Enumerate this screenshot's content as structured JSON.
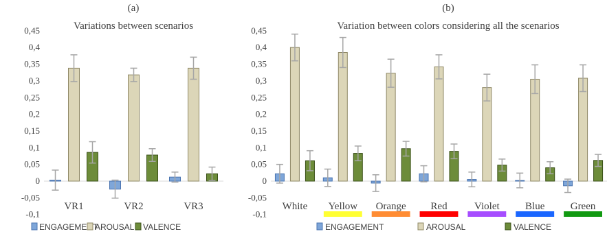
{
  "colors": {
    "engagement": "#7ea6d9",
    "engagement_stroke": "#4a74b0",
    "arousal": "#dcd6b8",
    "arousal_stroke": "#8f8866",
    "valence": "#6d8c3a",
    "valence_stroke": "#3a5018",
    "error": "#a6a6a6",
    "axis": "#d9d9d9",
    "text": "#404040"
  },
  "chart_data": [
    {
      "type": "bar",
      "panel_label": "(a)",
      "title": "Variations between scenarios",
      "categories": [
        "VR1",
        "VR2",
        "VR3"
      ],
      "ylim": [
        -0.1,
        0.45
      ],
      "yticks": [
        "-0,1",
        "-0,05",
        "0",
        "0,05",
        "0,1",
        "0,15",
        "0,2",
        "0,25",
        "0,3",
        "0,35",
        "0,4",
        "0,45"
      ],
      "ytick_values": [
        -0.1,
        -0.05,
        0,
        0.05,
        0.1,
        0.15,
        0.2,
        0.25,
        0.3,
        0.35,
        0.4,
        0.45
      ],
      "series": [
        {
          "name": "ENGAGEMENT",
          "values": [
            0.003,
            -0.024,
            0.012
          ],
          "errors": [
            0.03,
            0.027,
            0.015
          ]
        },
        {
          "name": "AROUSAL",
          "values": [
            0.338,
            0.318,
            0.338
          ],
          "errors": [
            0.04,
            0.02,
            0.033
          ]
        },
        {
          "name": "VALENCE",
          "values": [
            0.086,
            0.078,
            0.022
          ],
          "errors": [
            0.032,
            0.019,
            0.02
          ]
        }
      ],
      "legend": "bottom",
      "grid": false
    },
    {
      "type": "bar",
      "panel_label": "(b)",
      "title": "Variation between colors considering all the scenarios",
      "categories": [
        "White",
        "Yellow",
        "Orange",
        "Red",
        "Violet",
        "Blue",
        "Green"
      ],
      "category_colors": [
        "#ffffff",
        "#ffff33",
        "#ff8c33",
        "#ff0000",
        "#a64dff",
        "#1a66ff",
        "#119911"
      ],
      "ylim": [
        -0.1,
        0.45
      ],
      "yticks": [
        "-0,1",
        "-0,05",
        "0",
        "0,05",
        "0,1",
        "0,15",
        "0,2",
        "0,25",
        "0,3",
        "0,35",
        "0,4",
        "0,45"
      ],
      "ytick_values": [
        -0.1,
        -0.05,
        0,
        0.05,
        0.1,
        0.15,
        0.2,
        0.25,
        0.3,
        0.35,
        0.4,
        0.45
      ],
      "series": [
        {
          "name": "ENGAGEMENT",
          "values": [
            0.022,
            0.01,
            -0.006,
            0.022,
            0.005,
            0.002,
            -0.014
          ],
          "errors": [
            0.028,
            0.026,
            0.025,
            0.024,
            0.022,
            0.022,
            0.02
          ]
        },
        {
          "name": "AROUSAL",
          "values": [
            0.4,
            0.385,
            0.323,
            0.342,
            0.28,
            0.305,
            0.308
          ],
          "errors": [
            0.04,
            0.045,
            0.042,
            0.036,
            0.04,
            0.043,
            0.04
          ]
        },
        {
          "name": "VALENCE",
          "values": [
            0.061,
            0.083,
            0.097,
            0.089,
            0.048,
            0.04,
            0.062
          ],
          "errors": [
            0.03,
            0.022,
            0.022,
            0.022,
            0.018,
            0.018,
            0.018
          ]
        }
      ],
      "legend": "bottom",
      "grid": false
    }
  ]
}
